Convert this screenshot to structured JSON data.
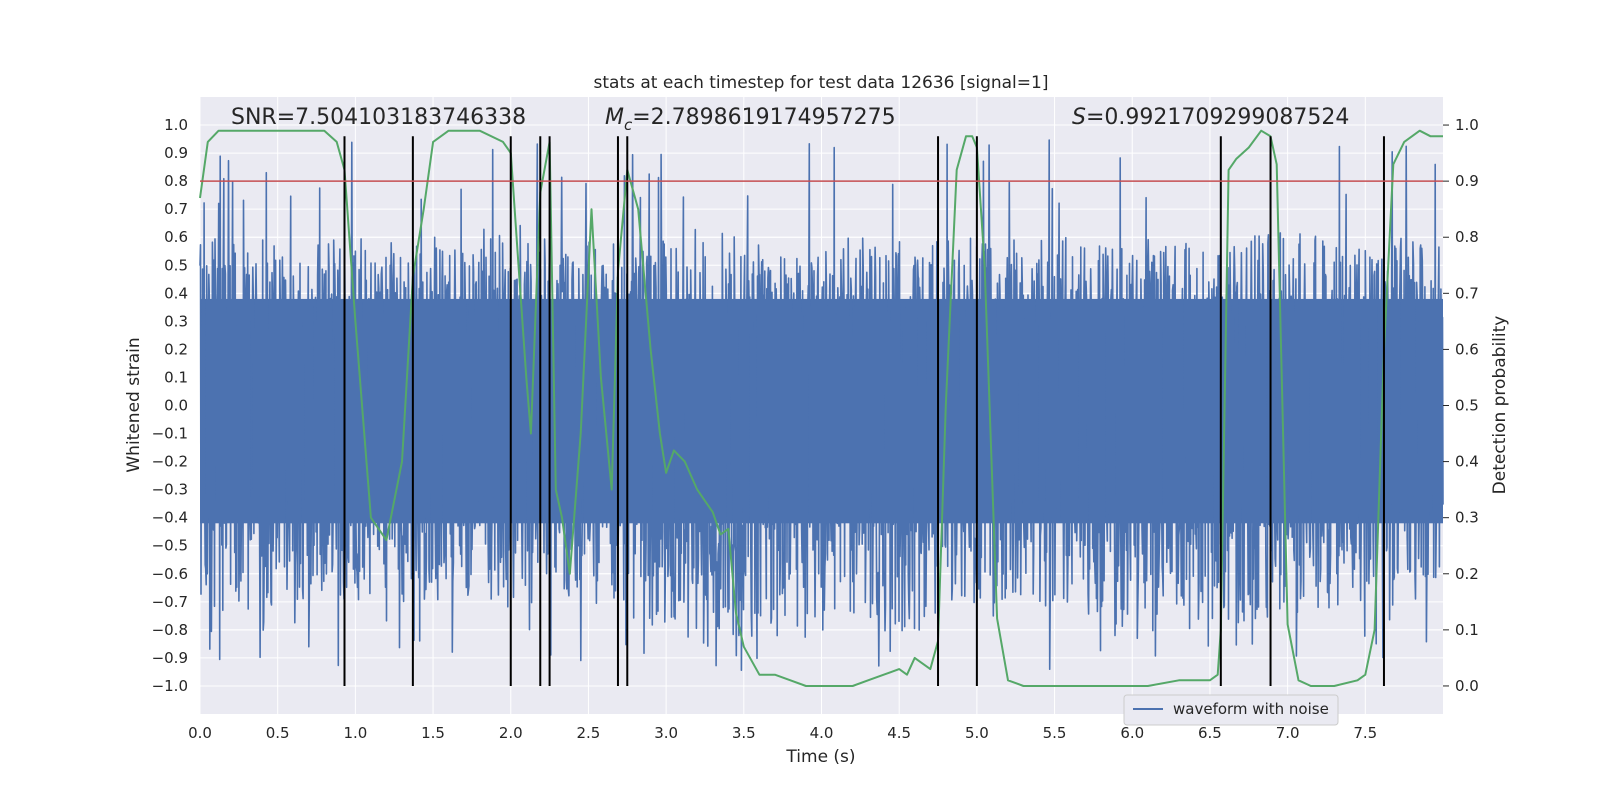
{
  "chart_data": {
    "type": "line",
    "title": "stats at each timestep for test data 12636 [signal=1]",
    "xlabel": "Time (s)",
    "ylabel": "Whitened strain",
    "ylabel_right": "Detection probability",
    "xlim": [
      0.0,
      8.0
    ],
    "ylim": [
      -1.1,
      1.1
    ],
    "ylim_right": [
      -0.05,
      1.05
    ],
    "x_ticks": [
      "0.0",
      "0.5",
      "1.0",
      "1.5",
      "2.0",
      "2.5",
      "3.0",
      "3.5",
      "4.0",
      "4.5",
      "5.0",
      "5.5",
      "6.0",
      "6.5",
      "7.0",
      "7.5"
    ],
    "y_ticks": [
      "1.0",
      "0.9",
      "0.8",
      "0.7",
      "0.6",
      "0.5",
      "0.4",
      "0.3",
      "0.2",
      "0.1",
      "0.0",
      "-0.1",
      "-0.2",
      "-0.3",
      "-0.4",
      "-0.5",
      "-0.6",
      "-0.7",
      "-0.8",
      "-0.9",
      "-1.0"
    ],
    "y_ticks_right": [
      "1.0",
      "0.9",
      "0.8",
      "0.7",
      "0.6",
      "0.5",
      "0.4",
      "0.3",
      "0.2",
      "0.1",
      "0.0"
    ],
    "grid": true,
    "legend": {
      "entries": [
        "waveform with noise"
      ],
      "placement": "lower-right"
    },
    "annotations": {
      "snr": "SNR=7.504103183746338",
      "mc_symbol": "M",
      "mc_sub": "c",
      "mc_value": "=2.7898619174957275",
      "s_symbol": "S",
      "s_value": "=0.9921709299087524"
    },
    "threshold": {
      "value": 0.9,
      "axis": "right",
      "color": "#c44e52"
    },
    "event_lines": [
      0.93,
      1.37,
      2.0,
      2.19,
      2.25,
      2.69,
      2.75,
      4.75,
      5.0,
      6.57,
      6.89,
      7.62
    ],
    "waveform": {
      "name": "waveform with noise",
      "color": "#4c72b0",
      "envelope": {
        "x": [
          0.0,
          0.5,
          0.9,
          1.4,
          2.0,
          2.5,
          3.0,
          3.5,
          4.0,
          4.5,
          5.0,
          5.5,
          6.0,
          6.5,
          7.0,
          7.5,
          8.0
        ],
        "upper": [
          0.6,
          0.6,
          0.6,
          0.6,
          0.65,
          0.6,
          0.65,
          0.6,
          0.6,
          0.6,
          0.6,
          0.6,
          0.6,
          0.6,
          0.62,
          0.6,
          0.6
        ],
        "lower": [
          -0.75,
          -0.72,
          -0.7,
          -0.7,
          -0.72,
          -0.7,
          -0.8,
          -0.95,
          -0.8,
          -0.82,
          -0.7,
          -0.72,
          -0.85,
          -0.8,
          -0.75,
          -0.7,
          -0.7
        ]
      }
    },
    "detection_probability": {
      "name": "Detection probability",
      "color": "#55a868",
      "x": [
        0.0,
        0.05,
        0.12,
        0.2,
        0.4,
        0.6,
        0.8,
        0.88,
        0.93,
        1.0,
        1.1,
        1.2,
        1.3,
        1.37,
        1.44,
        1.5,
        1.6,
        1.8,
        1.95,
        2.0,
        2.05,
        2.1,
        2.13,
        2.19,
        2.25,
        2.29,
        2.33,
        2.38,
        2.45,
        2.52,
        2.58,
        2.65,
        2.69,
        2.75,
        2.82,
        2.9,
        2.96,
        3.0,
        3.05,
        3.12,
        3.2,
        3.3,
        3.35,
        3.4,
        3.45,
        3.5,
        3.6,
        3.7,
        3.8,
        3.9,
        4.0,
        4.2,
        4.3,
        4.4,
        4.5,
        4.55,
        4.6,
        4.7,
        4.75,
        4.8,
        4.87,
        4.93,
        4.97,
        5.0,
        5.05,
        5.13,
        5.2,
        5.3,
        5.5,
        5.8,
        6.1,
        6.3,
        6.5,
        6.55,
        6.57,
        6.62,
        6.67,
        6.75,
        6.83,
        6.89,
        6.93,
        7.0,
        7.07,
        7.15,
        7.3,
        7.45,
        7.5,
        7.56,
        7.62,
        7.68,
        7.75,
        7.85,
        7.92,
        8.0
      ],
      "y": [
        0.87,
        0.97,
        0.99,
        0.99,
        0.99,
        0.99,
        0.99,
        0.97,
        0.92,
        0.65,
        0.3,
        0.26,
        0.4,
        0.73,
        0.85,
        0.97,
        0.99,
        0.99,
        0.97,
        0.95,
        0.75,
        0.55,
        0.45,
        0.88,
        0.97,
        0.35,
        0.3,
        0.2,
        0.45,
        0.85,
        0.55,
        0.35,
        0.74,
        0.92,
        0.85,
        0.6,
        0.45,
        0.38,
        0.42,
        0.4,
        0.35,
        0.31,
        0.27,
        0.28,
        0.13,
        0.07,
        0.02,
        0.02,
        0.01,
        0.0,
        0.0,
        0.0,
        0.01,
        0.02,
        0.03,
        0.02,
        0.05,
        0.03,
        0.08,
        0.5,
        0.92,
        0.98,
        0.98,
        0.96,
        0.75,
        0.12,
        0.01,
        0.0,
        0.0,
        0.0,
        0.0,
        0.01,
        0.01,
        0.02,
        0.1,
        0.92,
        0.94,
        0.96,
        0.99,
        0.98,
        0.93,
        0.11,
        0.01,
        0.0,
        0.0,
        0.01,
        0.02,
        0.1,
        0.6,
        0.93,
        0.97,
        0.99,
        0.98,
        0.98
      ]
    }
  }
}
